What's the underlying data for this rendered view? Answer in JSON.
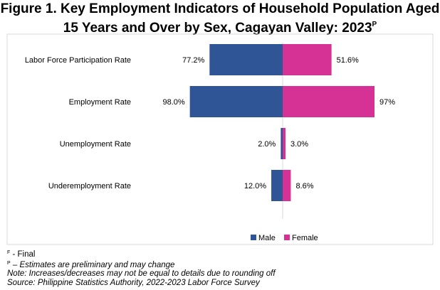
{
  "title": {
    "line1": "Figure 1. Key Employment Indicators of Household Population Aged",
    "line2": "15 Years and Over by Sex, Cagayan Valley: 2023",
    "superscript": "P"
  },
  "chart_data": {
    "type": "bar",
    "orientation": "horizontal-butterfly",
    "categories": [
      "Labor Force Participation Rate",
      "Employment Rate",
      "Unemployment Rate",
      "Underemployment Rate"
    ],
    "series": [
      {
        "name": "Male",
        "color": "#2f5597",
        "values": [
          77.2,
          98.0,
          2.0,
          12.0
        ],
        "labels": [
          "77.2%",
          "98.0%",
          "2.0%",
          "12.0%"
        ]
      },
      {
        "name": "Female",
        "color": "#d63194",
        "values": [
          51.6,
          97,
          3.0,
          8.6
        ],
        "labels": [
          "51.6%",
          "97%",
          "3.0%",
          "8.6%"
        ]
      }
    ],
    "legend_position": "bottom-right",
    "grid": false
  },
  "notes": {
    "final_sup": "F",
    "final_text": "Final",
    "prelim_sup": "P",
    "prelim_text": "Estimates are preliminary and may change",
    "note": "Note: Increases/decreases may not be equal to details due to rounding off",
    "source": "Source: Philippine Statistics Authority, 2022-2023 Labor Force Survey"
  }
}
